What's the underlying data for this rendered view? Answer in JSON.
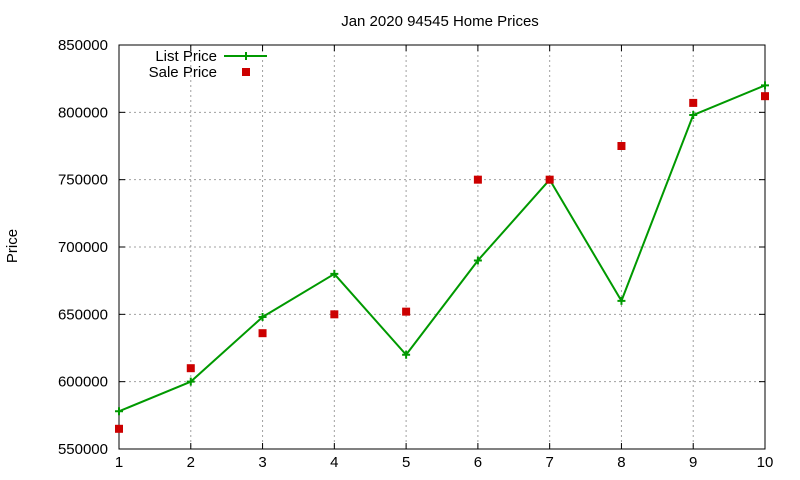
{
  "chart_data": {
    "type": "line",
    "title": "Jan 2020 94545 Home Prices",
    "xlabel": "",
    "ylabel": "Price",
    "xlim": [
      1,
      10
    ],
    "ylim": [
      550000,
      850000
    ],
    "x_ticks": [
      "1",
      "2",
      "3",
      "4",
      "5",
      "6",
      "7",
      "8",
      "9",
      "10"
    ],
    "y_ticks": [
      "550000",
      "600000",
      "650000",
      "700000",
      "750000",
      "800000",
      "850000"
    ],
    "x": [
      1,
      2,
      3,
      4,
      5,
      6,
      7,
      8,
      9,
      10
    ],
    "grid": true,
    "legend_position": "top-left",
    "series": [
      {
        "name": "List Price",
        "style": "line-points",
        "color": "#009900",
        "values": [
          578000,
          600000,
          648000,
          680000,
          620000,
          690000,
          750000,
          660000,
          798000,
          820000
        ]
      },
      {
        "name": "Sale Price",
        "style": "points",
        "color": "#cc0000",
        "values": [
          565000,
          610000,
          636000,
          650000,
          652000,
          750000,
          750000,
          775000,
          807000,
          812000
        ]
      }
    ]
  }
}
